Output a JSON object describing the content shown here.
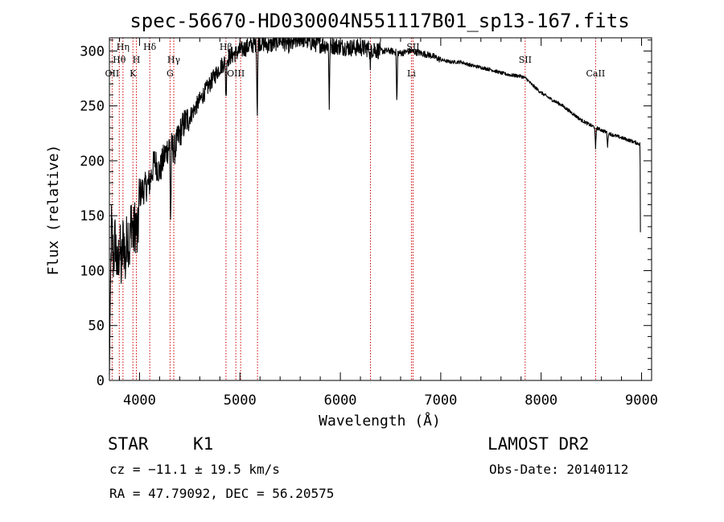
{
  "chart_data": {
    "type": "line",
    "title": "spec-56670-HD030004N551117B01_sp13-167.fits",
    "xlabel": "Wavelength (Å)",
    "ylabel": "Flux (relative)",
    "xlim": [
      3700,
      9100
    ],
    "ylim": [
      0,
      312
    ],
    "x_ticks": [
      4000,
      5000,
      6000,
      7000,
      8000,
      9000
    ],
    "y_ticks": [
      0,
      50,
      100,
      150,
      200,
      250,
      300
    ],
    "grid": false,
    "legend": "none",
    "series": [
      {
        "x": [
          3700,
          3720,
          3740,
          3760,
          3780,
          3800,
          3820,
          3840,
          3860,
          3880,
          3900,
          3920,
          3940,
          3960,
          3980,
          4000,
          4050,
          4100,
          4150,
          4200,
          4250,
          4300,
          4350,
          4400,
          4450,
          4500,
          4600,
          4700,
          4800,
          4900,
          5000,
          5100,
          5200,
          5300,
          5400,
          5500,
          5600,
          5700,
          5800,
          5900,
          6000,
          6100,
          6200,
          6300,
          6400,
          6500,
          6600,
          6700,
          6800,
          6900,
          7000,
          7100,
          7200,
          7300,
          7400,
          7500,
          7600,
          7700,
          7800,
          7850,
          7900,
          8000,
          8100,
          8200,
          8300,
          8400,
          8500,
          8600,
          8700,
          8800,
          8900,
          8990
        ],
        "y": [
          5,
          140,
          110,
          130,
          95,
          125,
          100,
          135,
          105,
          140,
          120,
          150,
          130,
          145,
          125,
          170,
          175,
          180,
          200,
          190,
          205,
          215,
          210,
          225,
          235,
          240,
          255,
          270,
          285,
          295,
          300,
          305,
          308,
          305,
          310,
          305,
          312,
          308,
          306,
          305,
          304,
          303,
          303,
          302,
          300,
          300,
          298,
          300,
          298,
          296,
          292,
          290,
          290,
          287,
          285,
          283,
          280,
          278,
          277,
          275,
          270,
          262,
          256,
          251,
          244,
          237,
          232,
          228,
          224,
          221,
          218,
          215
        ],
        "color": "#000000"
      }
    ],
    "absorption_dips": [
      {
        "x": 4310,
        "y": 140
      },
      {
        "x": 4861,
        "y": 255
      },
      {
        "x": 5172,
        "y": 240
      },
      {
        "x": 5890,
        "y": 250
      },
      {
        "x": 6300,
        "y": 285
      },
      {
        "x": 6563,
        "y": 250
      },
      {
        "x": 8542,
        "y": 210
      },
      {
        "x": 8662,
        "y": 213
      }
    ],
    "line_markers": {
      "color": "#cc0000",
      "lines": [
        {
          "x": 3727,
          "label": "OII",
          "row": 3
        },
        {
          "x": 3798,
          "label": "Hθ",
          "row": 2
        },
        {
          "x": 3835,
          "label": "Hη",
          "row": 1
        },
        {
          "x": 3934,
          "label": "K",
          "row": 3
        },
        {
          "x": 3969,
          "label": "H",
          "row": 2
        },
        {
          "x": 4102,
          "label": "Hδ",
          "row": 1
        },
        {
          "x": 4304,
          "label": "G",
          "row": 3
        },
        {
          "x": 4341,
          "label": "Hγ",
          "row": 2
        },
        {
          "x": 4861,
          "label": "Hβ",
          "row": 1
        },
        {
          "x": 4959,
          "label": "OIII",
          "row": 3
        },
        {
          "x": 5007,
          "label": "",
          "row": 3
        },
        {
          "x": 5175,
          "label": "",
          "row": 1
        },
        {
          "x": 6300,
          "label": "OI",
          "row": 1
        },
        {
          "x": 6708,
          "label": "Li",
          "row": 3
        },
        {
          "x": 6724,
          "label": "SII",
          "row": 1
        },
        {
          "x": 7841,
          "label": "SII",
          "row": 2
        },
        {
          "x": 8542,
          "label": "CaII",
          "row": 3
        }
      ]
    }
  },
  "info": {
    "object_class": "STAR",
    "subclass": "K1",
    "survey": "LAMOST DR2",
    "redshift_line": "cz = −11.1 ± 19.5 km/s",
    "obs_date": "Obs-Date: 20140112",
    "coords": "RA =  47.79092, DEC =  56.20575"
  }
}
